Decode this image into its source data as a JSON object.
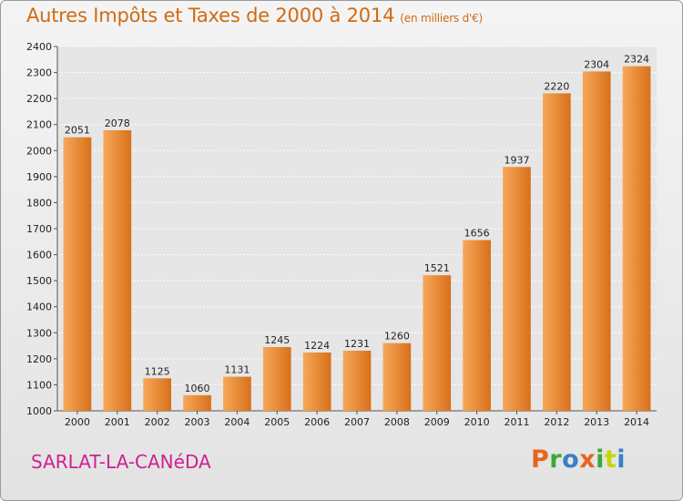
{
  "title": "Autres Impôts et Taxes de 2000 à 2014",
  "title_unit": "(en milliers d'€)",
  "city": "SARLAT-LA-CANéDA",
  "logo": {
    "letters": [
      "P",
      "r",
      "o",
      "x",
      "i",
      "t",
      "i"
    ],
    "colors": [
      "#e8641e",
      "#39a935",
      "#3b7fc4",
      "#e8641e",
      "#39a935",
      "#c4d600",
      "#3b7fc4"
    ]
  },
  "colors": {
    "bar_light": "#f7a85a",
    "bar_dark": "#d8701a",
    "title": "#d16a12",
    "city": "#d0208f"
  },
  "chart_data": {
    "type": "bar",
    "categories": [
      "2000",
      "2001",
      "2002",
      "2003",
      "2004",
      "2005",
      "2006",
      "2007",
      "2008",
      "2009",
      "2010",
      "2011",
      "2012",
      "2013",
      "2014"
    ],
    "values": [
      2051,
      2078,
      1125,
      1060,
      1131,
      1245,
      1224,
      1231,
      1260,
      1521,
      1656,
      1937,
      2220,
      2304,
      2324
    ],
    "ylim": [
      1000,
      2400
    ],
    "yticks": [
      1000,
      1100,
      1200,
      1300,
      1400,
      1500,
      1600,
      1700,
      1800,
      1900,
      2000,
      2100,
      2200,
      2300,
      2400
    ],
    "grid": true
  }
}
